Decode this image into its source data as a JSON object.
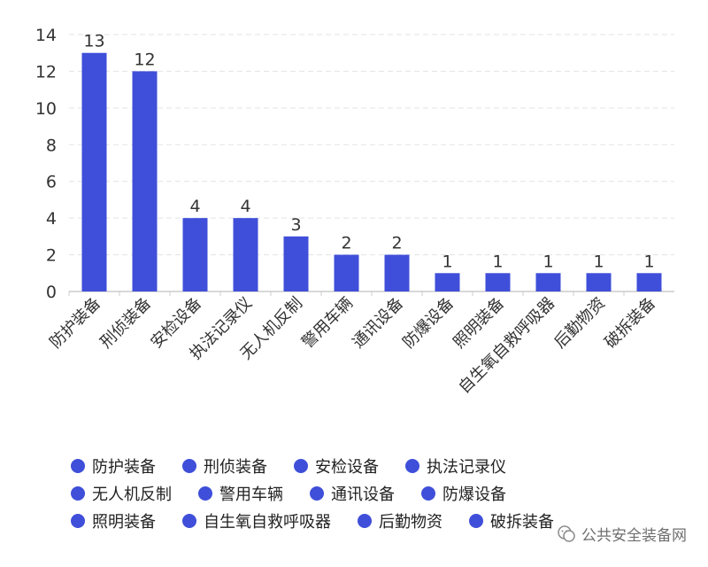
{
  "chart_data": {
    "type": "bar",
    "categories": [
      "防护装备",
      "刑侦装备",
      "安检设备",
      "执法记录仪",
      "无人机反制",
      "警用车辆",
      "通讯设备",
      "防爆设备",
      "照明装备",
      "自生氧自救呼吸器",
      "后勤物资",
      "破拆装备"
    ],
    "values": [
      13,
      12,
      4,
      4,
      3,
      2,
      2,
      1,
      1,
      1,
      1,
      1
    ],
    "ylim": [
      0,
      14
    ],
    "yticks": [
      0,
      2,
      4,
      6,
      8,
      10,
      12,
      14
    ],
    "grid": true,
    "legend_position": "bottom",
    "bar_color": "#3f4fd9",
    "grid_color": "#e3e3e3",
    "axis_color": "#cccccc"
  },
  "legend": {
    "rows": [
      [
        "防护装备",
        "刑侦装备",
        "安检设备",
        "执法记录仪"
      ],
      [
        "无人机反制",
        "警用车辆",
        "通讯设备",
        "防爆设备"
      ],
      [
        "照明装备",
        "自生氧自救呼吸器",
        "后勤物资",
        "破拆装备"
      ]
    ]
  },
  "watermark": {
    "text": "公共安全装备网"
  }
}
